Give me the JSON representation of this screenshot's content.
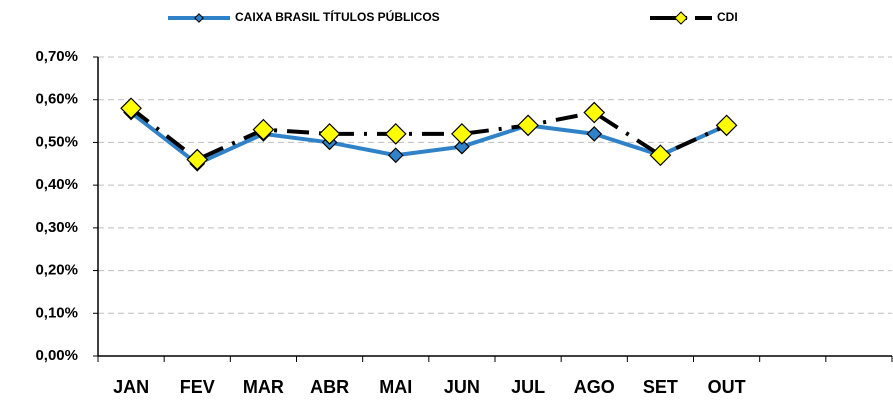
{
  "chart_data": {
    "type": "line",
    "categories": [
      "JAN",
      "FEV",
      "MAR",
      "ABR",
      "MAI",
      "JUN",
      "JUL",
      "AGO",
      "SET",
      "OUT",
      null,
      null
    ],
    "series": [
      {
        "name": "CAIXA BRASIL TÍTULOS PÚBLICOS",
        "color": "#2f82c8",
        "values": [
          0.57,
          0.45,
          0.52,
          0.5,
          0.47,
          0.49,
          0.54,
          0.52,
          0.47,
          0.54,
          null,
          null
        ]
      },
      {
        "name": "CDI",
        "color": "#000000",
        "values": [
          0.58,
          0.46,
          0.53,
          0.52,
          0.52,
          0.52,
          0.54,
          0.57,
          0.47,
          0.54,
          null,
          null
        ]
      }
    ],
    "ylim": [
      0,
      0.7
    ],
    "yticks": [
      {
        "value": 0,
        "label": "0,00%"
      },
      {
        "value": 0.1,
        "label": "0,10%"
      },
      {
        "value": 0.2,
        "label": "0,20%"
      },
      {
        "value": 0.3,
        "label": "0,30%"
      },
      {
        "value": 0.4,
        "label": "0,40%"
      },
      {
        "value": 0.5,
        "label": "0,50%"
      },
      {
        "value": 0.6,
        "label": "0,60%"
      },
      {
        "value": 0.7,
        "label": "0,70%"
      }
    ],
    "grid": true,
    "legend": "top"
  }
}
